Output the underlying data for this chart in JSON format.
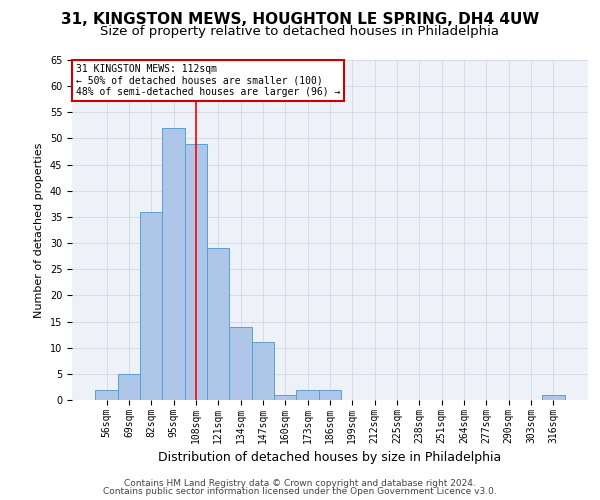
{
  "title1": "31, KINGSTON MEWS, HOUGHTON LE SPRING, DH4 4UW",
  "title2": "Size of property relative to detached houses in Philadelphia",
  "xlabel": "Distribution of detached houses by size in Philadelphia",
  "ylabel": "Number of detached properties",
  "categories": [
    "56sqm",
    "69sqm",
    "82sqm",
    "95sqm",
    "108sqm",
    "121sqm",
    "134sqm",
    "147sqm",
    "160sqm",
    "173sqm",
    "186sqm",
    "199sqm",
    "212sqm",
    "225sqm",
    "238sqm",
    "251sqm",
    "264sqm",
    "277sqm",
    "290sqm",
    "303sqm",
    "316sqm"
  ],
  "values": [
    2,
    5,
    36,
    52,
    49,
    29,
    14,
    11,
    1,
    2,
    2,
    0,
    0,
    0,
    0,
    0,
    0,
    0,
    0,
    0,
    1
  ],
  "bar_color": "#aec6e8",
  "bar_edge_color": "#5a9fd4",
  "annotation_lines": [
    "31 KINGSTON MEWS: 112sqm",
    "← 50% of detached houses are smaller (100)",
    "48% of semi-detached houses are larger (96) →"
  ],
  "annotation_box_color": "#ffffff",
  "annotation_box_edge_color": "#cc0000",
  "ylim": [
    0,
    65
  ],
  "yticks": [
    0,
    5,
    10,
    15,
    20,
    25,
    30,
    35,
    40,
    45,
    50,
    55,
    60,
    65
  ],
  "grid_color": "#d0d8e8",
  "bg_color": "#eef2f8",
  "footer1": "Contains HM Land Registry data © Crown copyright and database right 2024.",
  "footer2": "Contains public sector information licensed under the Open Government Licence v3.0.",
  "title1_fontsize": 11,
  "title2_fontsize": 9.5,
  "xlabel_fontsize": 9,
  "ylabel_fontsize": 8,
  "tick_fontsize": 7,
  "annotation_fontsize": 7,
  "footer_fontsize": 6.5
}
